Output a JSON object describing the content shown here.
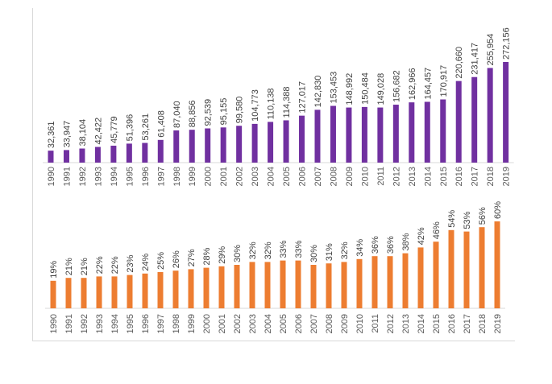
{
  "chart_data": [
    {
      "type": "bar",
      "title": "",
      "xlabel": "",
      "ylabel": "",
      "color": "#7030a0",
      "categories": [
        "1990",
        "1991",
        "1992",
        "1993",
        "1994",
        "1995",
        "1996",
        "1997",
        "1998",
        "1999",
        "2000",
        "2001",
        "2002",
        "2003",
        "2004",
        "2005",
        "2006",
        "2007",
        "2008",
        "2009",
        "2010",
        "2011",
        "2012",
        "2013",
        "2014",
        "2015",
        "2016",
        "2017",
        "2018",
        "2019"
      ],
      "values": [
        32361,
        33947,
        38104,
        42422,
        45779,
        51396,
        53261,
        61408,
        87040,
        88856,
        92539,
        95155,
        99580,
        104773,
        110138,
        114388,
        127017,
        142830,
        153453,
        148992,
        150484,
        149028,
        156682,
        162966,
        164457,
        170917,
        220660,
        231417,
        255954,
        272156
      ],
      "labels": [
        "32,361",
        "33,947",
        "38,104",
        "42,422",
        "45,779",
        "51,396",
        "53,261",
        "61,408",
        "87,040",
        "88,856",
        "92,539",
        "95,155",
        "99,580",
        "104,773",
        "110,138",
        "114,388",
        "127,017",
        "142,830",
        "153,453",
        "148,992",
        "150,484",
        "149,028",
        "156,682",
        "162,966",
        "164,457",
        "170,917",
        "220,660",
        "231,417",
        "255,954",
        "272,156"
      ],
      "grid": false,
      "legend": "none"
    },
    {
      "type": "bar",
      "title": "",
      "xlabel": "",
      "ylabel": "",
      "color": "#ed7d31",
      "categories": [
        "1990",
        "1991",
        "1992",
        "1993",
        "1994",
        "1995",
        "1996",
        "1997",
        "1998",
        "1999",
        "2000",
        "2001",
        "2002",
        "2003",
        "2004",
        "2005",
        "2006",
        "2007",
        "2008",
        "2009",
        "2010",
        "2011",
        "2012",
        "2013",
        "2014",
        "2015",
        "2016",
        "2017",
        "2018",
        "2019"
      ],
      "values": [
        19,
        21,
        21,
        22,
        22,
        23,
        24,
        25,
        26,
        27,
        28,
        29,
        30,
        32,
        32,
        33,
        33,
        30,
        31,
        32,
        34,
        36,
        36,
        38,
        42,
        46,
        54,
        53,
        56,
        60
      ],
      "labels": [
        "19%",
        "21%",
        "21%",
        "22%",
        "22%",
        "23%",
        "24%",
        "25%",
        "26%",
        "27%",
        "28%",
        "29%",
        "30%",
        "32%",
        "32%",
        "33%",
        "33%",
        "30%",
        "31%",
        "32%",
        "34%",
        "36%",
        "36%",
        "38%",
        "42%",
        "46%",
        "54%",
        "53%",
        "56%",
        "60%"
      ],
      "grid": false,
      "legend": "none"
    }
  ]
}
